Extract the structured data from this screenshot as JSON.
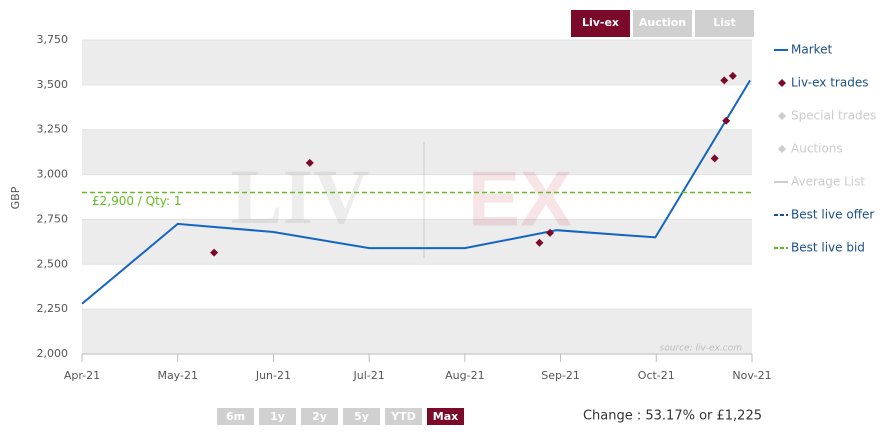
{
  "tabs": [
    "Liv-ex",
    "Auction",
    "List"
  ],
  "active_tab": 0,
  "ranges": [
    "6m",
    "1y",
    "2y",
    "5y",
    "YTD",
    "Max"
  ],
  "active_range": 5,
  "change_text": "Change : 53.17% or £1,225",
  "chart_data": {
    "type": "line",
    "y_label": "GBP",
    "watermark": [
      "LIV",
      "EX"
    ],
    "source": "source: liv-ex.com",
    "xlim": [
      0,
      7
    ],
    "xticks": [
      {
        "value": 0,
        "label": "Apr-21"
      },
      {
        "value": 1,
        "label": "May-21"
      },
      {
        "value": 2,
        "label": "Jun-21"
      },
      {
        "value": 3,
        "label": "Jul-21"
      },
      {
        "value": 4,
        "label": "Aug-21"
      },
      {
        "value": 5,
        "label": "Sep-21"
      },
      {
        "value": 6,
        "label": "Oct-21"
      },
      {
        "value": 7,
        "label": "Nov-21"
      }
    ],
    "ylim": [
      2000,
      3750
    ],
    "yticks": [
      {
        "value": 2000,
        "label": "2,000"
      },
      {
        "value": 2250,
        "label": "2,250"
      },
      {
        "value": 2500,
        "label": "2,500"
      },
      {
        "value": 2750,
        "label": "2,750"
      },
      {
        "value": 3000,
        "label": "3,000"
      },
      {
        "value": 3250,
        "label": "3,250"
      },
      {
        "value": 3500,
        "label": "3,500"
      },
      {
        "value": 3750,
        "label": "3,750"
      }
    ],
    "grid": true,
    "series": [
      {
        "name": "Market",
        "type": "line",
        "color": "#1565c0",
        "visible": true,
        "x": [
          0,
          1,
          2,
          3,
          4,
          4.96,
          5.99,
          6.98
        ],
        "values": [
          2280,
          2725,
          2680,
          2590,
          2590,
          2690,
          2650,
          3525
        ]
      },
      {
        "name": "Liv-ex trades",
        "type": "scatter",
        "color": "#7b0a2a",
        "visible": true,
        "x": [
          1.38,
          2.38,
          4.78,
          4.89,
          6.61,
          6.71,
          6.73,
          6.8
        ],
        "values": [
          2565,
          3065,
          2620,
          2675,
          3090,
          3525,
          3300,
          3550
        ]
      },
      {
        "name": "Special trades",
        "type": "scatter",
        "color": "#cccccc",
        "visible": false,
        "x": [],
        "values": []
      },
      {
        "name": "Auctions",
        "type": "scatter",
        "color": "#cccccc",
        "visible": false,
        "x": [],
        "values": []
      },
      {
        "name": "Average List",
        "type": "line",
        "color": "#cccccc",
        "visible": false,
        "x": [],
        "values": []
      },
      {
        "name": "Best live offer",
        "type": "hline",
        "color": "#1a4f8a",
        "visible": true,
        "values": []
      },
      {
        "name": "Best live bid",
        "type": "hline",
        "color": "#66bb22",
        "visible": true,
        "values": [
          2900
        ],
        "value_labels": [
          "£2,900 / Qty: 1"
        ]
      }
    ]
  }
}
